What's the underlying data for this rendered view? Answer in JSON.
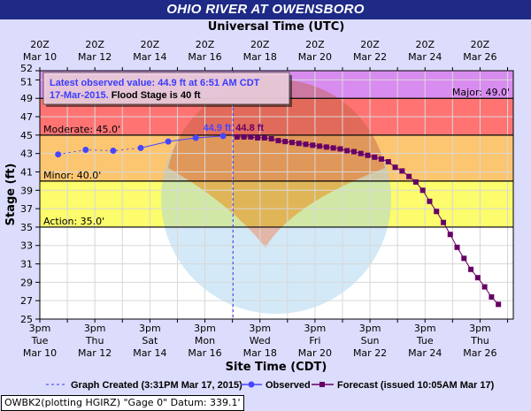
{
  "title": "OHIO RIVER AT OWENSBORO",
  "footer": "OWBK2(plotting HGIRZ) \"Gage 0\" Datum: 339.1'",
  "tooltip": {
    "line1": "Latest observed value: 44.9 ft at 6:51 AM CDT",
    "date": "17-Mar-2015.",
    "flood_stage": "Flood Stage is 40 ft"
  },
  "chart_data": {
    "type": "line",
    "title": "OHIO RIVER AT OWENSBORO",
    "top_axis_label": "Universal Time (UTC)",
    "xlabel": "Site Time (CDT)",
    "ylabel": "Stage (ft)",
    "xlim": [
      "2015-03-10T15:00",
      "2015-03-27T20:00"
    ],
    "ylim": [
      25,
      52
    ],
    "grid": true,
    "y_ticks": [
      25,
      27,
      29,
      31,
      33,
      35,
      37,
      39,
      41,
      43,
      45,
      47,
      49,
      51,
      52
    ],
    "top_ticks": [
      {
        "t": "2015-03-10T15:00",
        "l1": "20Z",
        "l2": "Mar 10"
      },
      {
        "t": "2015-03-12T15:00",
        "l1": "20Z",
        "l2": "Mar 12"
      },
      {
        "t": "2015-03-14T15:00",
        "l1": "20Z",
        "l2": "Mar 14"
      },
      {
        "t": "2015-03-16T15:00",
        "l1": "20Z",
        "l2": "Mar 16"
      },
      {
        "t": "2015-03-18T15:00",
        "l1": "20Z",
        "l2": "Mar 18"
      },
      {
        "t": "2015-03-20T15:00",
        "l1": "20Z",
        "l2": "Mar 20"
      },
      {
        "t": "2015-03-22T15:00",
        "l1": "20Z",
        "l2": "Mar 22"
      },
      {
        "t": "2015-03-24T15:00",
        "l1": "20Z",
        "l2": "Mar 24"
      },
      {
        "t": "2015-03-26T15:00",
        "l1": "20Z",
        "l2": "Mar 26"
      }
    ],
    "bottom_ticks": [
      {
        "t": "2015-03-10T15:00",
        "l1": "3pm",
        "l2": "Tue",
        "l3": "Mar 10"
      },
      {
        "t": "2015-03-12T15:00",
        "l1": "3pm",
        "l2": "Thu",
        "l3": "Mar 12"
      },
      {
        "t": "2015-03-14T15:00",
        "l1": "3pm",
        "l2": "Sat",
        "l3": "Mar 14"
      },
      {
        "t": "2015-03-16T15:00",
        "l1": "3pm",
        "l2": "Mon",
        "l3": "Mar 16"
      },
      {
        "t": "2015-03-18T15:00",
        "l1": "3pm",
        "l2": "Wed",
        "l3": "Mar 18"
      },
      {
        "t": "2015-03-20T15:00",
        "l1": "3pm",
        "l2": "Fri",
        "l3": "Mar 20"
      },
      {
        "t": "2015-03-22T15:00",
        "l1": "3pm",
        "l2": "Sun",
        "l3": "Mar 22"
      },
      {
        "t": "2015-03-24T15:00",
        "l1": "3pm",
        "l2": "Tue",
        "l3": "Mar 24"
      },
      {
        "t": "2015-03-26T15:00",
        "l1": "3pm",
        "l2": "Thu",
        "l3": "Mar 26"
      }
    ],
    "flood_categories": [
      {
        "name": "Major",
        "label": "Major: 49.0'",
        "from": 49,
        "to": 52,
        "color": "#d98cf0"
      },
      {
        "name": "Moderate",
        "label": "Moderate: 45.0'",
        "from": 45,
        "to": 49,
        "color": "#ff7373"
      },
      {
        "name": "Minor",
        "label": "Minor: 40.0'",
        "from": 40,
        "to": 45,
        "color": "#fcc570"
      },
      {
        "name": "Action",
        "label": "Action: 35.0'",
        "from": 35,
        "to": 40,
        "color": "#fcfc6c"
      }
    ],
    "graph_created": {
      "t": "2015-03-17T15:31",
      "label": "Graph Created (3:31PM Mar 17, 2015)",
      "color": "#3333ff"
    },
    "series": [
      {
        "name": "Observed",
        "color": "#4646ff",
        "marker": "circle",
        "end_label": "44.9 ft",
        "x": [
          "2015-03-11T07:00",
          "2015-03-12T07:00",
          "2015-03-13T07:00",
          "2015-03-14T07:00",
          "2015-03-15T07:00",
          "2015-03-16T07:00",
          "2015-03-17T06:51"
        ],
        "values": [
          42.9,
          43.4,
          43.3,
          43.6,
          44.3,
          44.7,
          44.9
        ]
      },
      {
        "name": "Forecast (issued 10:05AM Mar 17)",
        "color": "#660066",
        "marker": "square",
        "start_label": "44.8 ft",
        "start": "2015-03-17T19:00",
        "interval_hours": 6,
        "values": [
          44.8,
          44.8,
          44.8,
          44.7,
          44.7,
          44.6,
          44.4,
          44.3,
          44.2,
          44.1,
          44.0,
          43.9,
          43.8,
          43.7,
          43.6,
          43.5,
          43.3,
          43.2,
          43.0,
          42.8,
          42.6,
          42.4,
          42.1,
          41.5,
          41.1,
          40.5,
          39.9,
          39.0,
          37.8,
          36.7,
          35.5,
          34.2,
          32.8,
          31.6,
          30.4,
          29.5,
          28.5,
          27.4,
          26.6
        ]
      }
    ]
  }
}
